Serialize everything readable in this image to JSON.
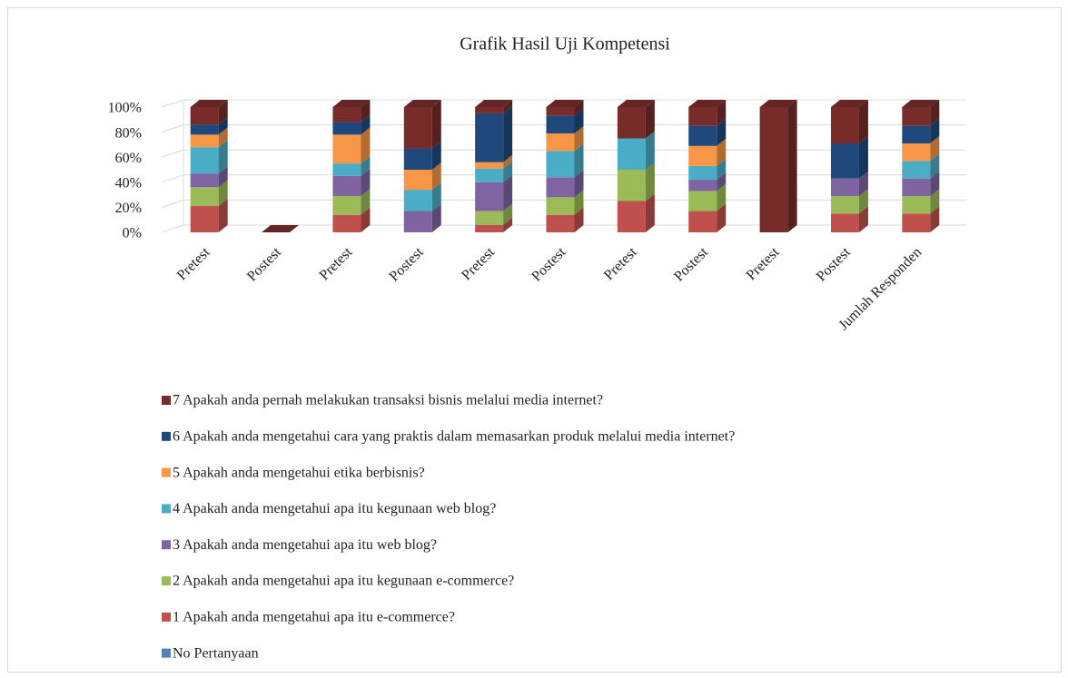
{
  "chart_data": {
    "type": "bar3d_stacked",
    "title": "Grafik Hasil Uji Kompetensi",
    "categories": [
      "Pretest",
      "Postest",
      "Pretest",
      "Postest",
      "Pretest",
      "Postest",
      "Pretest",
      "Postest",
      "Pretest",
      "Postest",
      "Jumlah Responden"
    ],
    "series": [
      {
        "name": "No Pertanyaan",
        "color": "#4f81bd",
        "values": [
          0,
          0,
          0,
          0,
          0,
          0,
          0,
          0,
          0,
          0,
          0
        ]
      },
      {
        "name": "1 Apakah anda mengetahui apa itu e-commerce?",
        "color": "#c0504d",
        "values": [
          21,
          0,
          14,
          0,
          6,
          14,
          25,
          17,
          0,
          15,
          15
        ]
      },
      {
        "name": "2 Apakah anda mengetahui apa itu kegunaan e-commerce?",
        "color": "#9bbb59",
        "values": [
          15,
          0,
          15,
          0,
          11,
          14,
          25,
          16,
          0,
          14,
          14
        ]
      },
      {
        "name": "3 Apakah anda mengetahui apa itu web blog?",
        "color": "#8064a2",
        "values": [
          11,
          0,
          16,
          17,
          23,
          16,
          0,
          9,
          0,
          14,
          14
        ]
      },
      {
        "name": "4 Apakah anda mengetahui apa itu kegunaan web blog?",
        "color": "#4bacc6",
        "values": [
          21,
          0,
          10,
          17,
          11,
          21,
          25,
          11,
          0,
          0,
          14
        ]
      },
      {
        "name": "5 Apakah anda mengetahui etika berbisnis?",
        "color": "#f79646",
        "values": [
          10,
          0,
          23,
          16,
          5,
          14,
          0,
          16,
          0,
          0,
          14
        ]
      },
      {
        "name": "6 Apakah anda mengetahui cara yang praktis dalam memasarkan produk melalui media internet?",
        "color": "#1f497d",
        "values": [
          8,
          0,
          10,
          17,
          39,
          14,
          0,
          16,
          0,
          28,
          14
        ]
      },
      {
        "name": "7 Apakah anda pernah melakukan transaksi bisnis melalui media internet?",
        "color": "#772c2a",
        "values": [
          14,
          0,
          12,
          33,
          5,
          7,
          25,
          15,
          100,
          29,
          15
        ]
      }
    ],
    "ylim": [
      0,
      100
    ],
    "yticks": [
      {
        "value": 0,
        "label": "0%"
      },
      {
        "value": 20,
        "label": "20%"
      },
      {
        "value": 40,
        "label": "40%"
      },
      {
        "value": 60,
        "label": "60%"
      },
      {
        "value": 80,
        "label": "80%"
      },
      {
        "value": 100,
        "label": "100%"
      }
    ],
    "grid": true
  }
}
